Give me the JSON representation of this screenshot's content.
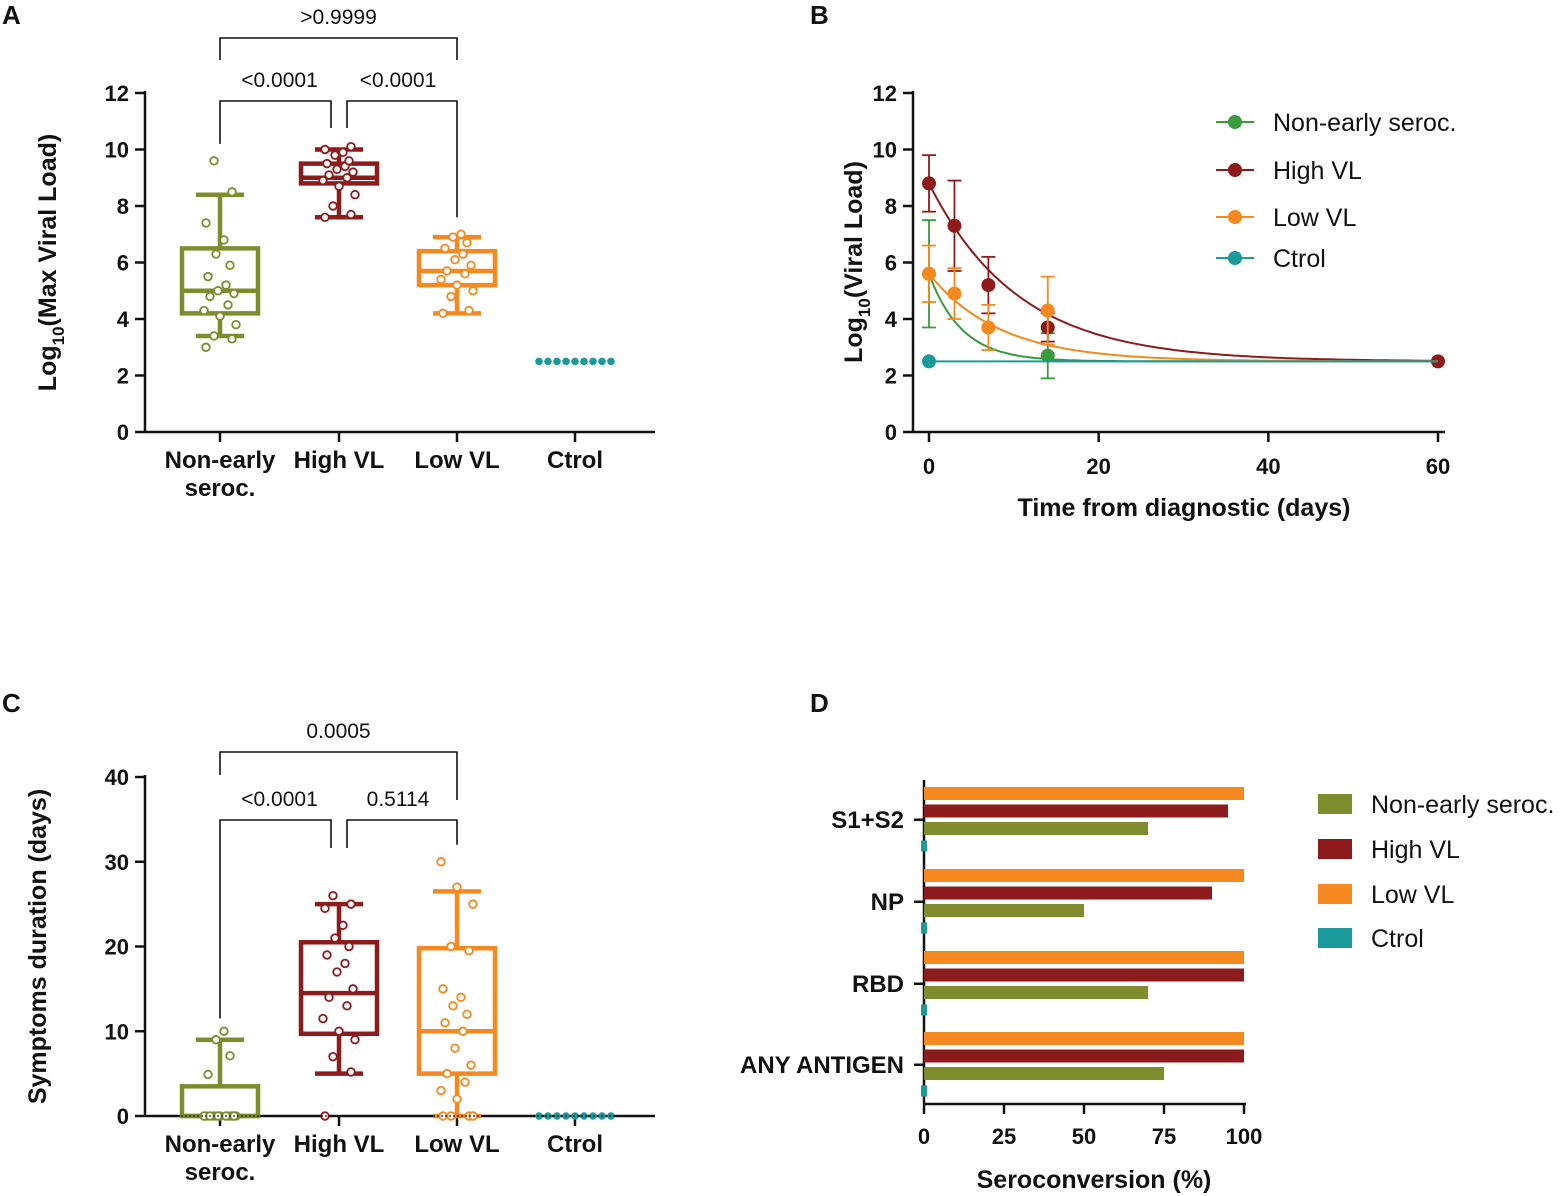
{
  "colors": {
    "non_early": "#7f8c2d",
    "high_vl": "#8e1b1b",
    "low_vl": "#f5891f",
    "ctrol": "#1a9a9a",
    "curve_non_early": "#3a9a3e"
  },
  "panels": {
    "A": {
      "letter": "A"
    },
    "B": {
      "letter": "B"
    },
    "C": {
      "letter": "C"
    },
    "D": {
      "letter": "D"
    }
  },
  "chart_data": [
    {
      "id": "A",
      "type": "box",
      "ylabel": "Log10(Max Viral Load)",
      "ylabel_main": "Log",
      "ylabel_sub": "10",
      "ylabel_rest": "(Max Viral Load)",
      "ylim": [
        0,
        12
      ],
      "yticks": [
        "0",
        "2",
        "4",
        "6",
        "8",
        "10",
        "12"
      ],
      "categories": [
        "Non-early seroc.",
        "High VL",
        "Low VL",
        "Ctrol"
      ],
      "category_lines": [
        [
          "Non-early",
          "seroc."
        ],
        [
          "High VL"
        ],
        [
          "Low VL"
        ],
        [
          "Ctrol"
        ]
      ],
      "boxes": [
        {
          "name": "Non-early seroc.",
          "color_key": "non_early",
          "min": 3.4,
          "q1": 4.2,
          "median": 5.0,
          "q3": 6.5,
          "max": 8.4,
          "points": [
            3.0,
            3.3,
            3.4,
            3.8,
            4.1,
            4.3,
            4.5,
            4.8,
            4.9,
            5.0,
            5.2,
            5.5,
            5.9,
            6.3,
            6.8,
            7.4,
            8.5,
            9.6
          ]
        },
        {
          "name": "High VL",
          "color_key": "high_vl",
          "min": 7.6,
          "q1": 8.8,
          "median": 9.0,
          "q3": 9.5,
          "max": 10.0,
          "points": [
            7.6,
            7.7,
            8.0,
            8.4,
            8.7,
            8.9,
            9.0,
            9.1,
            9.2,
            9.3,
            9.4,
            9.5,
            9.6,
            9.8,
            9.9,
            10.0,
            10.1
          ]
        },
        {
          "name": "Low VL",
          "color_key": "low_vl",
          "min": 4.2,
          "q1": 5.2,
          "median": 5.7,
          "q3": 6.4,
          "max": 6.9,
          "points": [
            4.2,
            4.3,
            4.8,
            5.0,
            5.2,
            5.4,
            5.6,
            5.7,
            5.9,
            6.1,
            6.3,
            6.5,
            6.7,
            6.9,
            7.0
          ]
        },
        {
          "name": "Ctrol",
          "color_key": "ctrol",
          "flat": 2.5,
          "n": 9
        }
      ],
      "comparisons": [
        {
          "from": 0,
          "to": 2,
          "label": ">0.9999",
          "level": 2
        },
        {
          "from": 0,
          "to": 1,
          "label": "<0.0001",
          "level": 1
        },
        {
          "from": 1,
          "to": 2,
          "label": "<0.0001",
          "level": 1
        }
      ]
    },
    {
      "id": "B",
      "type": "line",
      "xlabel": "Time from diagnostic (days)",
      "ylabel_main": "Log",
      "ylabel_sub": "10",
      "ylabel_rest": "(Viral Load)",
      "xlim": [
        0,
        60
      ],
      "ylim": [
        0,
        12
      ],
      "xticks": [
        "0",
        "20",
        "40",
        "60"
      ],
      "yticks": [
        "0",
        "2",
        "4",
        "6",
        "8",
        "10",
        "12"
      ],
      "series": [
        {
          "name": "Non-early seroc.",
          "color_key": "curve_non_early",
          "x": [
            0,
            14
          ],
          "y": [
            5.6,
            2.7
          ],
          "err": [
            1.9,
            0.8
          ],
          "fit": {
            "y0": 5.6,
            "plateau": 2.5,
            "k": 0.26
          }
        },
        {
          "name": "High VL",
          "color_key": "high_vl",
          "x": [
            0,
            3,
            7,
            14,
            60
          ],
          "y": [
            8.8,
            7.3,
            5.2,
            3.7,
            2.5
          ],
          "err": [
            1.0,
            1.6,
            1.0,
            0.5,
            0
          ],
          "fit": {
            "y0": 8.8,
            "plateau": 2.5,
            "k": 0.095
          }
        },
        {
          "name": "Low VL",
          "color_key": "low_vl",
          "x": [
            0,
            3,
            7,
            14
          ],
          "y": [
            5.6,
            4.9,
            3.7,
            4.3
          ],
          "err": [
            1.0,
            0.9,
            0.8,
            1.2
          ],
          "fit": {
            "y0": 5.6,
            "plateau": 2.5,
            "k": 0.12
          }
        },
        {
          "name": "Ctrol",
          "color_key": "ctrol",
          "x": [
            0
          ],
          "y": [
            2.5
          ],
          "err": [
            0
          ],
          "flat_to": 60
        }
      ],
      "legend": [
        "Non-early seroc.",
        "High VL",
        "Low VL",
        "Ctrol"
      ]
    },
    {
      "id": "C",
      "type": "box",
      "ylabel": "Symptoms duration (days)",
      "ylim": [
        0,
        40
      ],
      "yticks": [
        "0",
        "10",
        "20",
        "30",
        "40"
      ],
      "categories": [
        "Non-early seroc.",
        "High VL",
        "Low VL",
        "Ctrol"
      ],
      "category_lines": [
        [
          "Non-early",
          "seroc."
        ],
        [
          "High VL"
        ],
        [
          "Low VL"
        ],
        [
          "Ctrol"
        ]
      ],
      "boxes": [
        {
          "name": "Non-early seroc.",
          "color_key": "non_early",
          "min": 0,
          "q1": 0,
          "median": 0,
          "q3": 3.5,
          "max": 9,
          "points": [
            0,
            0,
            0,
            0,
            0,
            0,
            0,
            0,
            0,
            0,
            0,
            4.9,
            7.1,
            9.0,
            10.0
          ]
        },
        {
          "name": "High VL",
          "color_key": "high_vl",
          "min": 5,
          "q1": 9.7,
          "median": 14.5,
          "q3": 20.5,
          "max": 25,
          "points": [
            0,
            5.2,
            7.0,
            9.0,
            10.0,
            11.5,
            13.0,
            14.0,
            15.0,
            17.0,
            18.0,
            19.0,
            20.0,
            21.0,
            22.5,
            24.5,
            25.0,
            26.0
          ]
        },
        {
          "name": "Low VL",
          "color_key": "low_vl",
          "min": 0,
          "q1": 5,
          "median": 10,
          "q3": 19.8,
          "max": 26.5,
          "points": [
            0,
            0,
            0,
            0,
            2.0,
            3.0,
            4.0,
            5.0,
            6.0,
            8.0,
            10.0,
            11.0,
            12.0,
            13.0,
            14.0,
            15.0,
            19.5,
            20.0,
            25.0,
            27.0,
            30.0
          ]
        },
        {
          "name": "Ctrol",
          "color_key": "ctrol",
          "flat": 0,
          "n": 9
        }
      ],
      "comparisons": [
        {
          "from": 0,
          "to": 2,
          "label": "0.0005",
          "level": 2
        },
        {
          "from": 0,
          "to": 1,
          "label": "<0.0001",
          "level": 1
        },
        {
          "from": 1,
          "to": 2,
          "label": "0.5114",
          "level": 1
        }
      ]
    },
    {
      "id": "D",
      "type": "bar",
      "orientation": "horizontal",
      "xlabel": "Seroconversion (%)",
      "xlim": [
        0,
        100
      ],
      "xticks": [
        "0",
        "25",
        "50",
        "75",
        "100"
      ],
      "categories": [
        "S1+S2",
        "NP",
        "RBD",
        "ANY ANTIGEN"
      ],
      "series": [
        {
          "name": "Low VL",
          "color_key": "low_vl",
          "values": [
            100,
            100,
            100,
            100
          ]
        },
        {
          "name": "High VL",
          "color_key": "high_vl",
          "values": [
            95,
            90,
            100,
            100
          ]
        },
        {
          "name": "Non-early seroc.",
          "color_key": "non_early",
          "values": [
            70,
            50,
            70,
            75
          ]
        },
        {
          "name": "Ctrol",
          "color_key": "ctrol",
          "values": [
            0,
            0,
            0,
            0
          ]
        }
      ],
      "legend": [
        "Non-early seroc.",
        "High VL",
        "Low VL",
        "Ctrol"
      ]
    }
  ]
}
